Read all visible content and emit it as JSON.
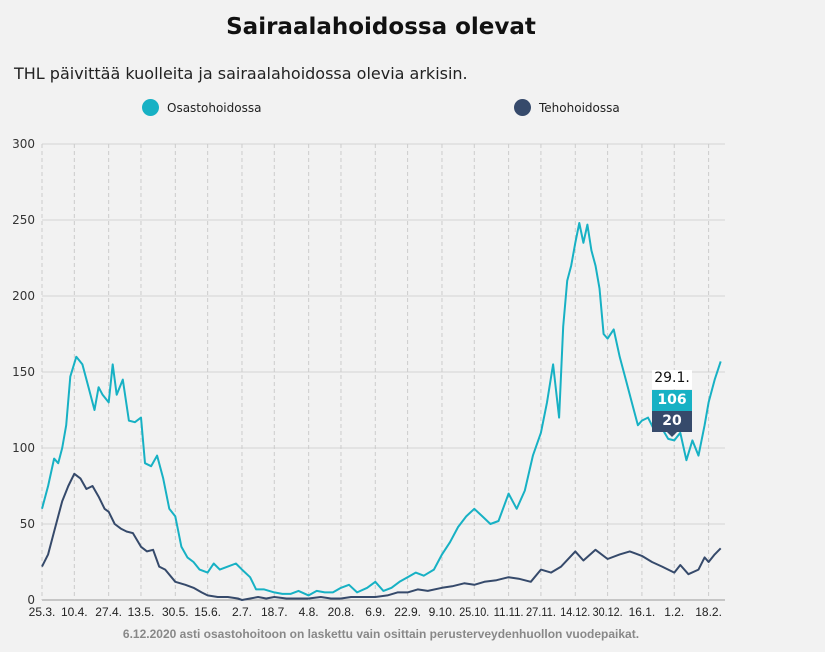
{
  "title": "Sairaalahoidossa olevat",
  "subtitle": "THL päivittää kuolleita ja sairaalahoidossa olevia arkisin.",
  "footnote": "6.12.2020 asti osastohoitoon on laskettu vain osittain perusterveydenhuollon vuodepaikat.",
  "tooltip": {
    "date": "29.1.",
    "osasto": "106",
    "teho": "20"
  },
  "chart_data": {
    "type": "line",
    "ylim": [
      0,
      300
    ],
    "yticks": [
      "0",
      "50",
      "100",
      "150",
      "200",
      "250",
      "300"
    ],
    "xticks": [
      [
        "2020-03-25",
        "25.3."
      ],
      [
        "2020-04-10",
        "10.4."
      ],
      [
        "2020-04-27",
        "27.4."
      ],
      [
        "2020-05-13",
        "13.5."
      ],
      [
        "2020-05-30",
        "30.5."
      ],
      [
        "2020-06-15",
        "15.6."
      ],
      [
        "2020-07-02",
        "2.7."
      ],
      [
        "2020-07-18",
        "18.7."
      ],
      [
        "2020-08-04",
        "4.8."
      ],
      [
        "2020-08-20",
        "20.8."
      ],
      [
        "2020-09-06",
        "6.9."
      ],
      [
        "2020-09-22",
        "22.9."
      ],
      [
        "2020-10-09",
        "9.10."
      ],
      [
        "2020-10-25",
        "25.10."
      ],
      [
        "2020-11-11",
        "11.11."
      ],
      [
        "2020-11-27",
        "27.11."
      ],
      [
        "2020-12-14",
        "14.12."
      ],
      [
        "2020-12-30",
        "30.12."
      ],
      [
        "2021-01-16",
        "16.1."
      ],
      [
        "2021-02-01",
        "1.2."
      ],
      [
        "2021-02-18",
        "18.2."
      ]
    ],
    "grid": true,
    "legend": "top",
    "series": [
      {
        "name": "Osastohoidossa",
        "color": "#17b1c4",
        "points": [
          [
            "2020-03-25",
            60
          ],
          [
            "2020-03-28",
            75
          ],
          [
            "2020-03-31",
            93
          ],
          [
            "2020-04-02",
            90
          ],
          [
            "2020-04-04",
            100
          ],
          [
            "2020-04-06",
            115
          ],
          [
            "2020-04-08",
            147
          ],
          [
            "2020-04-11",
            160
          ],
          [
            "2020-04-14",
            155
          ],
          [
            "2020-04-17",
            140
          ],
          [
            "2020-04-20",
            125
          ],
          [
            "2020-04-22",
            140
          ],
          [
            "2020-04-24",
            135
          ],
          [
            "2020-04-27",
            130
          ],
          [
            "2020-04-29",
            155
          ],
          [
            "2020-05-01",
            135
          ],
          [
            "2020-05-04",
            145
          ],
          [
            "2020-05-07",
            118
          ],
          [
            "2020-05-10",
            117
          ],
          [
            "2020-05-13",
            120
          ],
          [
            "2020-05-15",
            90
          ],
          [
            "2020-05-18",
            88
          ],
          [
            "2020-05-21",
            95
          ],
          [
            "2020-05-24",
            80
          ],
          [
            "2020-05-27",
            60
          ],
          [
            "2020-05-30",
            55
          ],
          [
            "2020-06-02",
            35
          ],
          [
            "2020-06-05",
            28
          ],
          [
            "2020-06-08",
            25
          ],
          [
            "2020-06-11",
            20
          ],
          [
            "2020-06-15",
            18
          ],
          [
            "2020-06-18",
            24
          ],
          [
            "2020-06-21",
            20
          ],
          [
            "2020-06-25",
            22
          ],
          [
            "2020-06-29",
            24
          ],
          [
            "2020-07-02",
            20
          ],
          [
            "2020-07-06",
            15
          ],
          [
            "2020-07-09",
            7
          ],
          [
            "2020-07-13",
            7
          ],
          [
            "2020-07-18",
            5
          ],
          [
            "2020-07-22",
            4
          ],
          [
            "2020-07-26",
            4
          ],
          [
            "2020-07-30",
            6
          ],
          [
            "2020-08-04",
            3
          ],
          [
            "2020-08-08",
            6
          ],
          [
            "2020-08-12",
            5
          ],
          [
            "2020-08-16",
            5
          ],
          [
            "2020-08-20",
            8
          ],
          [
            "2020-08-24",
            10
          ],
          [
            "2020-08-28",
            5
          ],
          [
            "2020-09-02",
            8
          ],
          [
            "2020-09-06",
            12
          ],
          [
            "2020-09-10",
            6
          ],
          [
            "2020-09-14",
            8
          ],
          [
            "2020-09-18",
            12
          ],
          [
            "2020-09-22",
            15
          ],
          [
            "2020-09-26",
            18
          ],
          [
            "2020-09-30",
            16
          ],
          [
            "2020-10-05",
            20
          ],
          [
            "2020-10-09",
            30
          ],
          [
            "2020-10-13",
            38
          ],
          [
            "2020-10-17",
            48
          ],
          [
            "2020-10-21",
            55
          ],
          [
            "2020-10-25",
            60
          ],
          [
            "2020-10-29",
            55
          ],
          [
            "2020-11-02",
            50
          ],
          [
            "2020-11-06",
            52
          ],
          [
            "2020-11-11",
            70
          ],
          [
            "2020-11-15",
            60
          ],
          [
            "2020-11-19",
            72
          ],
          [
            "2020-11-23",
            95
          ],
          [
            "2020-11-27",
            110
          ],
          [
            "2020-11-30",
            130
          ],
          [
            "2020-12-03",
            155
          ],
          [
            "2020-12-06",
            120
          ],
          [
            "2020-12-08",
            180
          ],
          [
            "2020-12-10",
            210
          ],
          [
            "2020-12-12",
            220
          ],
          [
            "2020-12-14",
            235
          ],
          [
            "2020-12-16",
            248
          ],
          [
            "2020-12-18",
            235
          ],
          [
            "2020-12-20",
            247
          ],
          [
            "2020-12-22",
            230
          ],
          [
            "2020-12-24",
            220
          ],
          [
            "2020-12-26",
            205
          ],
          [
            "2020-12-28",
            175
          ],
          [
            "2020-12-30",
            172
          ],
          [
            "2021-01-02",
            178
          ],
          [
            "2021-01-05",
            160
          ],
          [
            "2021-01-08",
            145
          ],
          [
            "2021-01-11",
            130
          ],
          [
            "2021-01-14",
            115
          ],
          [
            "2021-01-16",
            118
          ],
          [
            "2021-01-19",
            120
          ],
          [
            "2021-01-22",
            112
          ],
          [
            "2021-01-25",
            115
          ],
          [
            "2021-01-29",
            106
          ],
          [
            "2021-02-01",
            105
          ],
          [
            "2021-02-04",
            110
          ],
          [
            "2021-02-07",
            92
          ],
          [
            "2021-02-10",
            105
          ],
          [
            "2021-02-13",
            95
          ],
          [
            "2021-02-16",
            115
          ],
          [
            "2021-02-18",
            130
          ],
          [
            "2021-02-21",
            145
          ],
          [
            "2021-02-24",
            157
          ]
        ]
      },
      {
        "name": "Tehohoidossa",
        "color": "#364a6b",
        "points": [
          [
            "2020-03-25",
            22
          ],
          [
            "2020-03-28",
            30
          ],
          [
            "2020-03-31",
            45
          ],
          [
            "2020-04-04",
            65
          ],
          [
            "2020-04-07",
            75
          ],
          [
            "2020-04-10",
            83
          ],
          [
            "2020-04-13",
            80
          ],
          [
            "2020-04-16",
            73
          ],
          [
            "2020-04-19",
            75
          ],
          [
            "2020-04-22",
            68
          ],
          [
            "2020-04-25",
            60
          ],
          [
            "2020-04-27",
            58
          ],
          [
            "2020-04-30",
            50
          ],
          [
            "2020-05-03",
            47
          ],
          [
            "2020-05-06",
            45
          ],
          [
            "2020-05-09",
            44
          ],
          [
            "2020-05-13",
            35
          ],
          [
            "2020-05-16",
            32
          ],
          [
            "2020-05-19",
            33
          ],
          [
            "2020-05-22",
            22
          ],
          [
            "2020-05-25",
            20
          ],
          [
            "2020-05-30",
            12
          ],
          [
            "2020-06-04",
            10
          ],
          [
            "2020-06-08",
            8
          ],
          [
            "2020-06-12",
            5
          ],
          [
            "2020-06-15",
            3
          ],
          [
            "2020-06-20",
            2
          ],
          [
            "2020-06-25",
            2
          ],
          [
            "2020-06-30",
            1
          ],
          [
            "2020-07-02",
            0
          ],
          [
            "2020-07-06",
            1
          ],
          [
            "2020-07-10",
            2
          ],
          [
            "2020-07-14",
            1
          ],
          [
            "2020-07-18",
            2
          ],
          [
            "2020-07-24",
            1
          ],
          [
            "2020-07-30",
            1
          ],
          [
            "2020-08-04",
            1
          ],
          [
            "2020-08-10",
            2
          ],
          [
            "2020-08-15",
            1
          ],
          [
            "2020-08-20",
            1
          ],
          [
            "2020-08-25",
            2
          ],
          [
            "2020-08-30",
            2
          ],
          [
            "2020-09-06",
            2
          ],
          [
            "2020-09-12",
            3
          ],
          [
            "2020-09-17",
            5
          ],
          [
            "2020-09-22",
            5
          ],
          [
            "2020-09-27",
            7
          ],
          [
            "2020-10-02",
            6
          ],
          [
            "2020-10-09",
            8
          ],
          [
            "2020-10-14",
            9
          ],
          [
            "2020-10-20",
            11
          ],
          [
            "2020-10-25",
            10
          ],
          [
            "2020-10-30",
            12
          ],
          [
            "2020-11-05",
            13
          ],
          [
            "2020-11-11",
            15
          ],
          [
            "2020-11-16",
            14
          ],
          [
            "2020-11-22",
            12
          ],
          [
            "2020-11-27",
            20
          ],
          [
            "2020-12-02",
            18
          ],
          [
            "2020-12-07",
            22
          ],
          [
            "2020-12-14",
            32
          ],
          [
            "2020-12-18",
            26
          ],
          [
            "2020-12-24",
            33
          ],
          [
            "2020-12-30",
            27
          ],
          [
            "2021-01-05",
            30
          ],
          [
            "2021-01-10",
            32
          ],
          [
            "2021-01-16",
            29
          ],
          [
            "2021-01-21",
            25
          ],
          [
            "2021-01-26",
            22
          ],
          [
            "2021-01-29",
            20
          ],
          [
            "2021-02-01",
            18
          ],
          [
            "2021-02-04",
            23
          ],
          [
            "2021-02-08",
            17
          ],
          [
            "2021-02-13",
            20
          ],
          [
            "2021-02-16",
            28
          ],
          [
            "2021-02-18",
            25
          ],
          [
            "2021-02-21",
            30
          ],
          [
            "2021-02-24",
            34
          ]
        ]
      }
    ]
  }
}
